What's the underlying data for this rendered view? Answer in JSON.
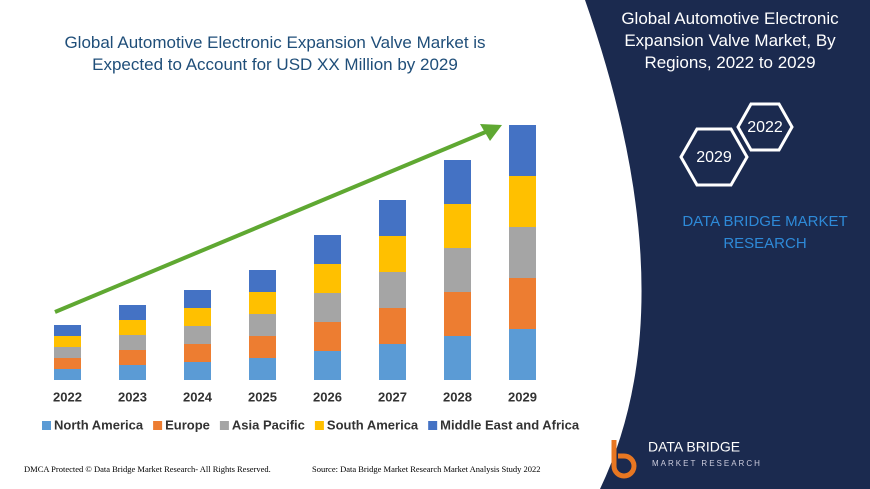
{
  "chart_data": {
    "type": "bar",
    "stacked": true,
    "title": "Global Automotive Electronic Expansion Valve Market is Expected to Account for USD XX Million by 2029",
    "categories": [
      "2022",
      "2023",
      "2024",
      "2025",
      "2026",
      "2027",
      "2028",
      "2029"
    ],
    "series": [
      {
        "name": "North America",
        "color": "#5b9bd5",
        "values": [
          11,
          15,
          18,
          22,
          29,
          36,
          44,
          51
        ]
      },
      {
        "name": "Europe",
        "color": "#ed7d31",
        "values": [
          11,
          15,
          18,
          22,
          29,
          36,
          44,
          51
        ]
      },
      {
        "name": "Asia Pacific",
        "color": "#a5a5a5",
        "values": [
          11,
          15,
          18,
          22,
          29,
          36,
          44,
          51
        ]
      },
      {
        "name": "South America",
        "color": "#ffc000",
        "values": [
          11,
          15,
          18,
          22,
          29,
          36,
          44,
          51
        ]
      },
      {
        "name": "Middle East and Africa",
        "color": "#4472c4",
        "values": [
          11,
          15,
          18,
          22,
          29,
          36,
          44,
          51
        ]
      }
    ],
    "ylim": [
      0,
      260
    ],
    "legend": "bottom"
  },
  "panel": {
    "title": "Global Automotive Electronic Expansion Valve Market, By Regions, 2022 to 2029",
    "hex_labels": [
      "2022",
      "2029"
    ],
    "brand": "DATA BRIDGE MARKET RESEARCH",
    "logo_name": "DATA BRIDGE",
    "logo_sub": "MARKET RESEARCH"
  },
  "footer": {
    "left": "DMCA Protected © Data Bridge Market Research- All Rights Reserved.",
    "right": "Source: Data Bridge Market Research Market Analysis Study 2022"
  }
}
